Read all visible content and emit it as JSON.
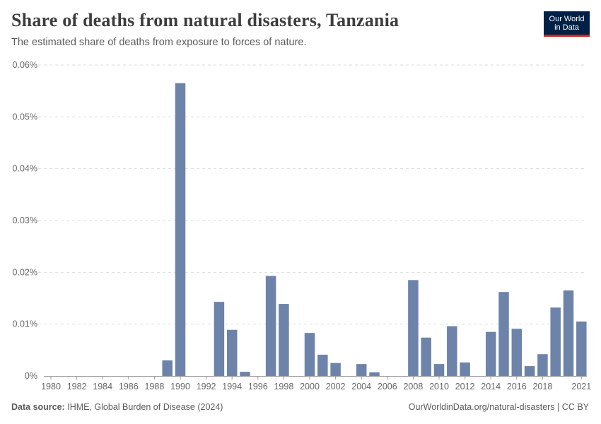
{
  "header": {
    "title": "Share of deaths from natural disasters, Tanzania",
    "subtitle": "The estimated share of deaths from exposure to forces of nature."
  },
  "logo": {
    "line1": "Our World",
    "line2": "in Data"
  },
  "footer": {
    "source_label": "Data source:",
    "source_text": "IHME, Global Burden of Disease (2024)",
    "right_text": "OurWorldinData.org/natural-disasters | CC BY"
  },
  "colors": {
    "bar": "#6d83aa",
    "grid": "#dddddd",
    "axis": "#999999"
  },
  "chart_data": {
    "type": "bar",
    "title": "Share of deaths from natural disasters, Tanzania",
    "subtitle": "The estimated share of deaths from exposure to forces of nature.",
    "xlabel": "",
    "ylabel": "",
    "ylim": [
      0,
      0.06
    ],
    "yticks": [
      0,
      0.01,
      0.02,
      0.03,
      0.04,
      0.05,
      0.06
    ],
    "ytick_labels": [
      "0%",
      "0.01%",
      "0.02%",
      "0.03%",
      "0.04%",
      "0.05%",
      "0.06%"
    ],
    "xtick_labels": [
      "1980",
      "1982",
      "1984",
      "1986",
      "1988",
      "1990",
      "1992",
      "1994",
      "1996",
      "1998",
      "2000",
      "2002",
      "2004",
      "2006",
      "2008",
      "2010",
      "2012",
      "2014",
      "2016",
      "2018",
      "2021"
    ],
    "unit": "%",
    "categories": [
      1980,
      1981,
      1982,
      1983,
      1984,
      1985,
      1986,
      1987,
      1988,
      1989,
      1990,
      1991,
      1992,
      1993,
      1994,
      1995,
      1996,
      1997,
      1998,
      1999,
      2000,
      2001,
      2002,
      2003,
      2004,
      2005,
      2006,
      2007,
      2008,
      2009,
      2010,
      2011,
      2012,
      2013,
      2014,
      2015,
      2016,
      2017,
      2018,
      2019,
      2020,
      2021
    ],
    "values": [
      0,
      0,
      0,
      0,
      0,
      0,
      0,
      0,
      0,
      0.003,
      0.0565,
      0,
      0,
      0.0143,
      0.0089,
      0.0008,
      0,
      0.0193,
      0.0139,
      0,
      0.0083,
      0.0041,
      0.0025,
      0,
      0.0023,
      0.0007,
      0,
      0,
      0.0185,
      0.0074,
      0.0023,
      0.0096,
      0.0026,
      0,
      0.0085,
      0.0162,
      0.0091,
      0.0019,
      0.0042,
      0.0132,
      0.0165,
      0.0105
    ]
  }
}
